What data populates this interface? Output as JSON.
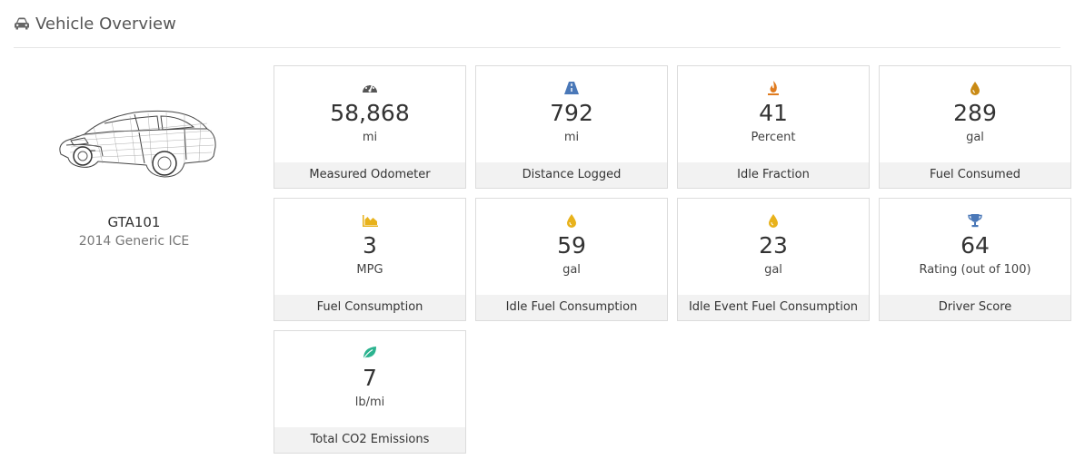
{
  "page": {
    "title": "Vehicle Overview",
    "title_icon": "car-icon"
  },
  "vehicle": {
    "id": "GTA101",
    "description": "2014 Generic ICE",
    "image": "car-wireframe-image"
  },
  "colors": {
    "gray": "#555555",
    "blue": "#4a78b8",
    "orange": "#e07b1f",
    "yellow": "#e8b21b",
    "green": "#2bb38f"
  },
  "metrics": [
    {
      "key": "odometer",
      "icon": "speedometer-icon",
      "icon_color": "#555555",
      "value": "58,868",
      "unit": "mi",
      "label": "Measured Odometer"
    },
    {
      "key": "distance",
      "icon": "road-icon",
      "icon_color": "#4a78b8",
      "value": "792",
      "unit": "mi",
      "label": "Distance Logged"
    },
    {
      "key": "idle",
      "icon": "fire-icon",
      "icon_color": "#e07b1f",
      "value": "41",
      "unit": "Percent",
      "label": "Idle Fraction"
    },
    {
      "key": "fuel",
      "icon": "drop-icon",
      "icon_color": "#c98a14",
      "value": "289",
      "unit": "gal",
      "label": "Fuel Consumed"
    },
    {
      "key": "fuel-consumption",
      "icon": "area-chart-icon",
      "icon_color": "#e8b21b",
      "value": "3",
      "unit": "MPG",
      "label": "Fuel Consumption"
    },
    {
      "key": "idle-fuel",
      "icon": "drop-icon",
      "icon_color": "#e8b21b",
      "value": "59",
      "unit": "gal",
      "label": "Idle Fuel Consumption"
    },
    {
      "key": "idle-event-fuel",
      "icon": "drop-icon",
      "icon_color": "#e8b21b",
      "value": "23",
      "unit": "gal",
      "label": "Idle Event Fuel Consumption"
    },
    {
      "key": "driver-score",
      "icon": "trophy-icon",
      "icon_color": "#4a78b8",
      "value": "64",
      "unit": "Rating (out of 100)",
      "label": "Driver Score"
    },
    {
      "key": "co2",
      "icon": "leaf-icon",
      "icon_color": "#2bb38f",
      "value": "7",
      "unit": "lb/mi",
      "label": "Total CO2 Emissions"
    }
  ]
}
